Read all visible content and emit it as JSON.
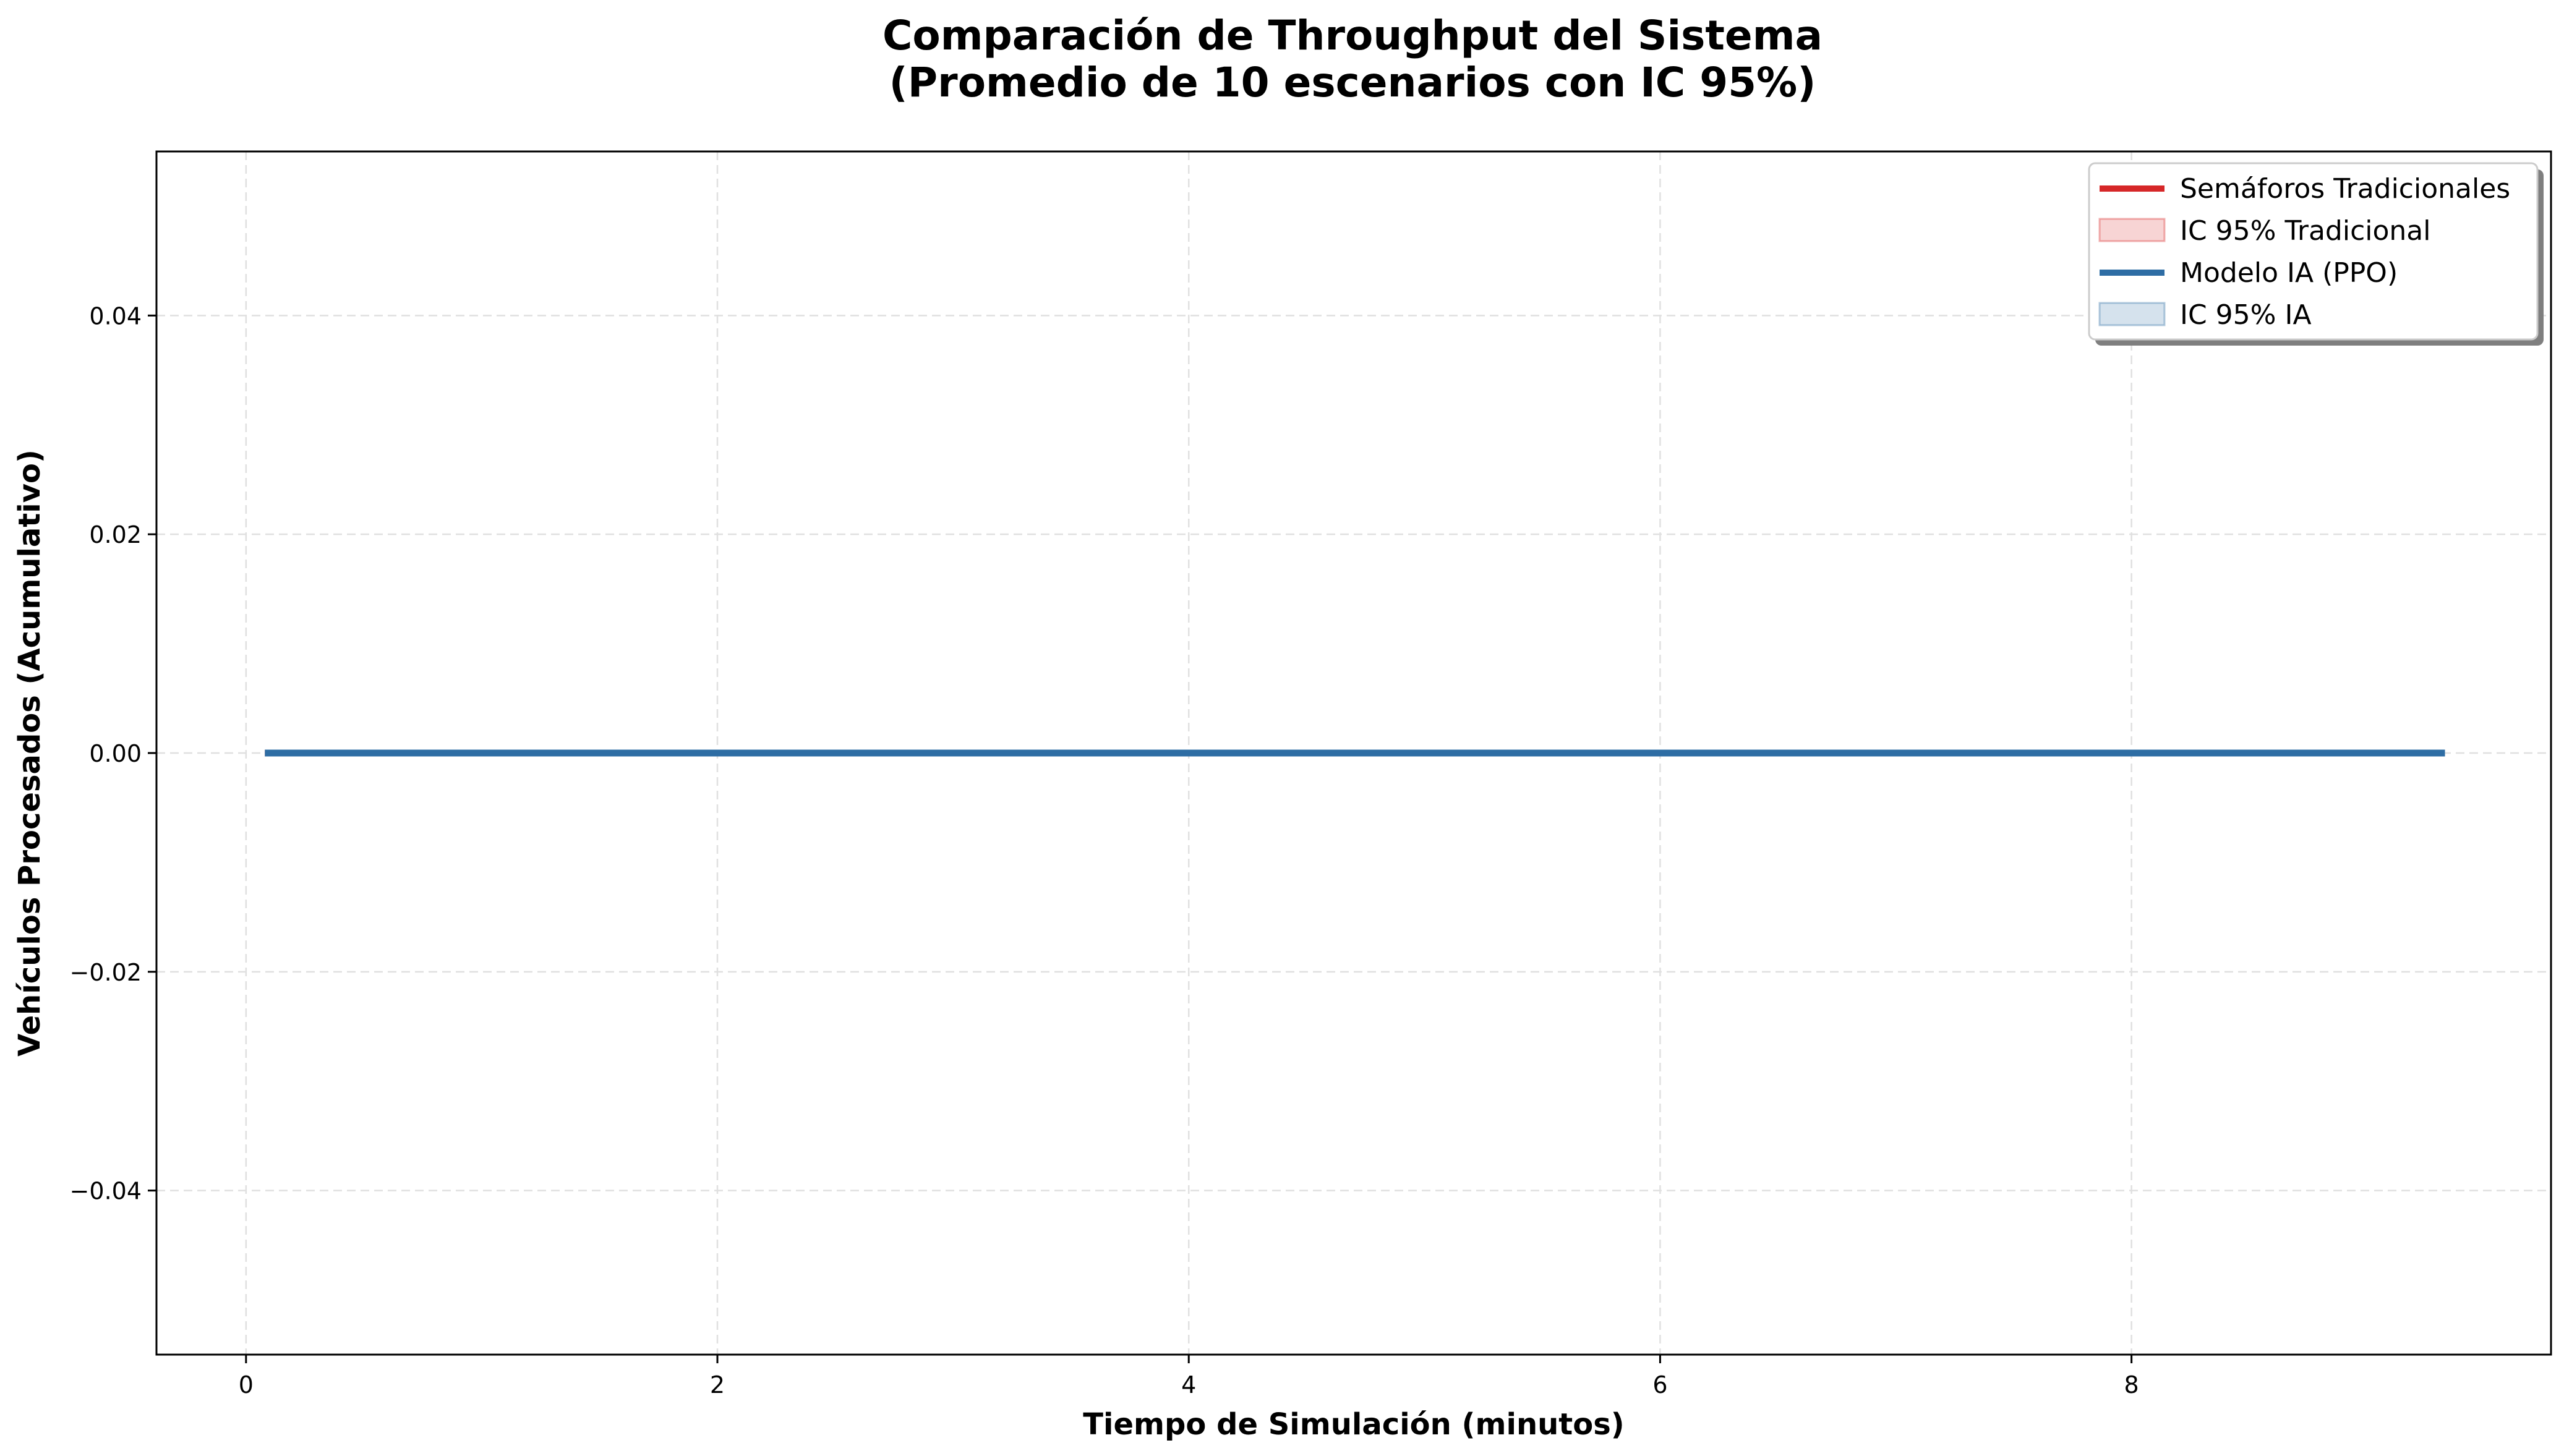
{
  "chart_data": {
    "type": "line",
    "title": "Comparación de Throughput del Sistema",
    "subtitle": "(Promedio de 10 escenarios con IC 95%)",
    "xlabel": "Tiempo de Simulación (minutos)",
    "ylabel": "Vehículos Procesados (Acumulativo)",
    "xlim": [
      -0.38,
      9.78
    ],
    "ylim": [
      -0.055,
      0.055
    ],
    "xticks": [
      0,
      2,
      4,
      6,
      8
    ],
    "yticks": [
      -0.04,
      -0.02,
      0.0,
      0.02,
      0.04
    ],
    "xtick_labels": [
      "0",
      "2",
      "4",
      "6",
      "8"
    ],
    "ytick_labels": [
      "−0.04",
      "−0.02",
      "0.00",
      "0.02",
      "0.04"
    ],
    "grid": true,
    "legend_position": "top-right",
    "series": [
      {
        "name": "Semáforos Tradicionales",
        "ci_name": "IC 95% Tradicional",
        "color": "#d62728",
        "x": [
          0.08,
          9.33
        ],
        "y": [
          0,
          0
        ],
        "ci_lower": [
          0,
          0
        ],
        "ci_upper": [
          0,
          0
        ]
      },
      {
        "name": "Modelo IA (PPO)",
        "ci_name": "IC 95% IA",
        "color": "#2e6da4",
        "x": [
          0.08,
          9.33
        ],
        "y": [
          0,
          0
        ],
        "ci_lower": [
          0,
          0
        ],
        "ci_upper": [
          0,
          0
        ]
      }
    ]
  }
}
